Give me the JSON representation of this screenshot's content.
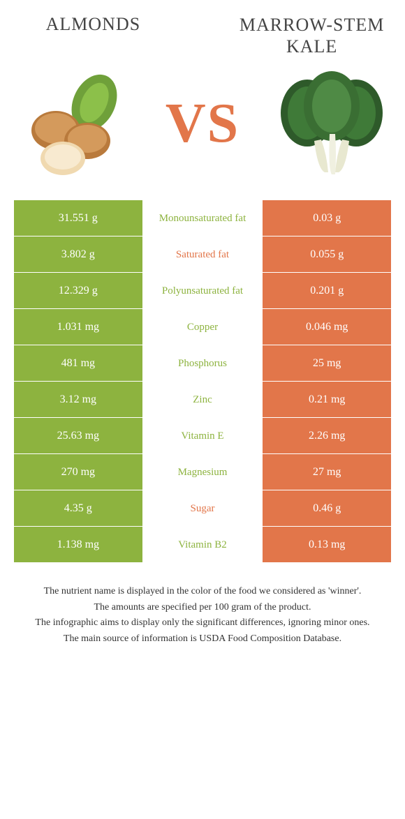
{
  "colors": {
    "left": "#8db33f",
    "right": "#e2764a",
    "vs": "#e2764a",
    "mid_left": "#8db33f",
    "mid_right": "#e2764a",
    "text_footer": "#333333",
    "title": "#444444"
  },
  "titles": {
    "left": "Almonds",
    "right": "Marrow-stem Kale"
  },
  "vs_label": "VS",
  "rows": [
    {
      "left": "31.551 g",
      "mid": "Monounsaturated fat",
      "right": "0.03 g",
      "winner": "left"
    },
    {
      "left": "3.802 g",
      "mid": "Saturated fat",
      "right": "0.055 g",
      "winner": "right"
    },
    {
      "left": "12.329 g",
      "mid": "Polyunsaturated fat",
      "right": "0.201 g",
      "winner": "left"
    },
    {
      "left": "1.031 mg",
      "mid": "Copper",
      "right": "0.046 mg",
      "winner": "left"
    },
    {
      "left": "481 mg",
      "mid": "Phosphorus",
      "right": "25 mg",
      "winner": "left"
    },
    {
      "left": "3.12 mg",
      "mid": "Zinc",
      "right": "0.21 mg",
      "winner": "left"
    },
    {
      "left": "25.63 mg",
      "mid": "Vitamin E",
      "right": "2.26 mg",
      "winner": "left"
    },
    {
      "left": "270 mg",
      "mid": "Magnesium",
      "right": "27 mg",
      "winner": "left"
    },
    {
      "left": "4.35 g",
      "mid": "Sugar",
      "right": "0.46 g",
      "winner": "right"
    },
    {
      "left": "1.138 mg",
      "mid": "Vitamin B2",
      "right": "0.13 mg",
      "winner": "left"
    }
  ],
  "footnotes": [
    "The nutrient name is displayed in the color of the food we considered as 'winner'.",
    "The amounts are specified per 100 gram of the product.",
    "The infographic aims to display only the significant differences, ignoring minor ones.",
    "The main source of information is USDA Food Composition Database."
  ]
}
